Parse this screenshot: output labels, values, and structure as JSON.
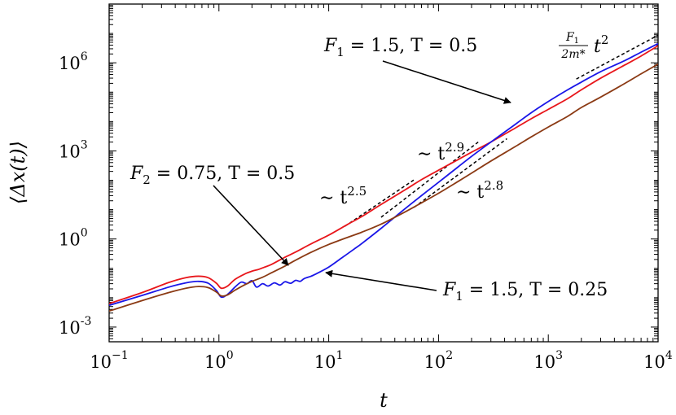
{
  "chart_data": {
    "type": "line",
    "xlabel": "t",
    "ylabel": "⟨Δx(t)⟩",
    "xscale": "log",
    "yscale": "log",
    "xlim": [
      0.1,
      10000
    ],
    "ylim": [
      0.000316,
      100000000
    ],
    "grid": false,
    "x_tick_labels": [
      {
        "value": 0.1,
        "base": "10",
        "exp": "−1"
      },
      {
        "value": 1,
        "base": "10",
        "exp": "0"
      },
      {
        "value": 10,
        "base": "10",
        "exp": "1"
      },
      {
        "value": 100,
        "base": "10",
        "exp": "2"
      },
      {
        "value": 1000,
        "base": "10",
        "exp": "3"
      },
      {
        "value": 10000,
        "base": "10",
        "exp": "4"
      }
    ],
    "y_tick_labels": [
      {
        "value": 0.001,
        "base": "10",
        "exp": "-3"
      },
      {
        "value": 1,
        "base": "10",
        "exp": "0"
      },
      {
        "value": 1000,
        "base": "10",
        "exp": "3"
      },
      {
        "value": 1000000,
        "base": "10",
        "exp": "6"
      }
    ],
    "series": [
      {
        "color": "#e8161b",
        "x": [
          0.1,
          0.2,
          0.35,
          0.5,
          0.65,
          0.8,
          0.95,
          1.05,
          1.2,
          1.4,
          1.7,
          2,
          2.3,
          2.6,
          3,
          4,
          5,
          7,
          10,
          15,
          20,
          30,
          50,
          70,
          100,
          150,
          200,
          300,
          500,
          700,
          1000,
          1500,
          2000,
          3000,
          5000,
          7000,
          10000
        ],
        "y": [
          0.0063,
          0.015,
          0.033,
          0.048,
          0.054,
          0.048,
          0.031,
          0.021,
          0.025,
          0.042,
          0.063,
          0.08,
          0.092,
          0.11,
          0.135,
          0.24,
          0.36,
          0.7,
          1.35,
          3.2,
          5.8,
          15,
          48,
          105,
          220,
          500,
          900,
          2000,
          6000,
          12500,
          26000,
          60000,
          120000,
          300000,
          850000,
          1700000,
          3800000
        ]
      },
      {
        "color": "#1a16e8",
        "x": [
          0.1,
          0.2,
          0.35,
          0.5,
          0.65,
          0.8,
          0.95,
          1.05,
          1.2,
          1.4,
          1.6,
          1.8,
          2,
          2.2,
          2.5,
          2.8,
          3.2,
          3.6,
          4,
          4.5,
          5,
          5.5,
          6,
          7,
          8,
          10,
          13,
          17,
          20,
          30,
          50,
          70,
          100,
          150,
          200,
          300,
          500,
          700,
          1000,
          1500,
          2000,
          3000,
          5000,
          7000,
          10000
        ],
        "y": [
          0.0055,
          0.012,
          0.023,
          0.032,
          0.036,
          0.031,
          0.0175,
          0.0105,
          0.013,
          0.023,
          0.034,
          0.03,
          0.038,
          0.023,
          0.03,
          0.025,
          0.032,
          0.027,
          0.035,
          0.031,
          0.039,
          0.036,
          0.045,
          0.055,
          0.07,
          0.11,
          0.22,
          0.45,
          0.7,
          2.3,
          11,
          30,
          85,
          280,
          650,
          2000,
          8000,
          20000,
          48000,
          120000,
          220000,
          500000,
          1200000,
          2300000,
          4500000
        ]
      },
      {
        "color": "#8b3a14",
        "x": [
          0.1,
          0.2,
          0.35,
          0.5,
          0.65,
          0.8,
          0.95,
          1.05,
          1.2,
          1.4,
          1.7,
          2,
          2.5,
          3,
          4,
          5,
          7,
          10,
          15,
          20,
          30,
          50,
          70,
          100,
          150,
          200,
          300,
          500,
          700,
          1000,
          1500,
          2000,
          3000,
          5000,
          7000,
          10000
        ],
        "y": [
          0.0035,
          0.008,
          0.015,
          0.021,
          0.024,
          0.022,
          0.0155,
          0.0115,
          0.0125,
          0.018,
          0.027,
          0.036,
          0.05,
          0.07,
          0.12,
          0.19,
          0.36,
          0.65,
          1.15,
          1.7,
          3.2,
          8.5,
          17,
          36,
          90,
          175,
          450,
          1400,
          3000,
          6500,
          15000,
          30000,
          68000,
          200000,
          420000,
          900000
        ]
      }
    ],
    "guides": [
      {
        "name": "t^2.5 guide",
        "x": [
          14,
          60
        ],
        "y": [
          2.7,
          104
        ]
      },
      {
        "name": "t^2.9 guide",
        "x": [
          30,
          230
        ],
        "y": [
          5.5,
          2000
        ]
      },
      {
        "name": "t^2.8 guide",
        "x": [
          60,
          420
        ],
        "y": [
          12,
          2600
        ]
      },
      {
        "name": "t^2 guide",
        "x": [
          1800,
          10000
        ],
        "y": [
          280000,
          8700000
        ]
      }
    ],
    "annotations": [
      {
        "id": "f1-t05",
        "text_left": "F",
        "sub": "1",
        "text_right": " = 1.5,  T = 0.5"
      },
      {
        "id": "f2-t05",
        "text_left": "F",
        "sub": "2",
        "text_right": " = 0.75,  T = 0.5"
      },
      {
        "id": "f1-t025",
        "text_left": "F",
        "sub": "1",
        "text_right": " = 1.5,  T = 0.25"
      },
      {
        "id": "p25",
        "text": "∼ t",
        "exp": "2.5"
      },
      {
        "id": "p29",
        "text": "∼ t",
        "exp": "2.9"
      },
      {
        "id": "p28",
        "text": "∼ t",
        "exp": "2.8"
      },
      {
        "id": "ballistic",
        "num": "F",
        "num_sub": "1",
        "den": "2m*",
        "text": "t",
        "exp": "2"
      }
    ]
  }
}
